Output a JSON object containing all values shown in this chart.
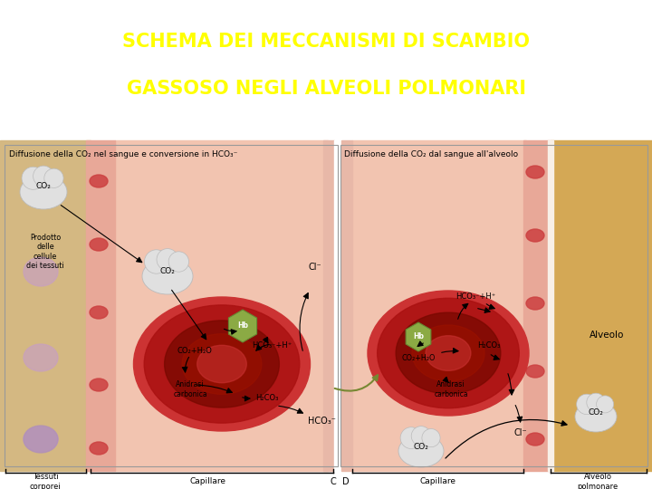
{
  "title_line1": "SCHEMA DEI MECCANISMI DI SCAMBIO",
  "title_line2": "GASSOSO NEGLI ALVEOLI POLMONARI",
  "title_color": "#FFFF00",
  "title_bg_color": "#1010BB",
  "title_fontsize": 15,
  "fig_bg_color": "#FFFFFF",
  "subtitle_left": "Diffusione della CO₂ nel sangue e conversione in HCO₃⁻",
  "subtitle_right": "Diffusione della CO₂ dal sangue all'alveolo",
  "label_tessuti": "Tessuti\ncorporei",
  "label_capillare_left": "Capillare",
  "label_C": "C",
  "label_D": "D",
  "label_capillare_right": "Capillare",
  "label_alveolo_polmonare": "Alveolo\npolmonare",
  "label_alveolo_right": "Alveolo",
  "label_prodotto": "Prodotto\ndelle\ncellule\ndei tessuti",
  "label_co2_left_top": "CO₂",
  "label_co2_cap_left": "CO₂",
  "label_cl_left": "Cl⁻",
  "label_co2h2o_left": "CO₂+H₂O",
  "label_hco3h_left": "HCO₃⁻+H⁺",
  "label_anidrasi_left": "Anidrasi\ncarbonica",
  "label_h2co3_left": "H₂CO₃",
  "label_hco3_out_left": "HCO₃⁻",
  "label_hco3h_right": "HCO₃⁻+H⁺",
  "label_h2co3_right": "H₂CO₃",
  "label_co2h2o_right": "CO₂+H₂O",
  "label_anidrasi_right": "Anidrasi\ncarbonica",
  "label_cl_right": "Cl⁻",
  "label_co2_bottom_right": "CO₂",
  "label_co2_alveolo": "CO₂",
  "capillary_color": "#F2C4B0",
  "tissue_color_left": "#D4B882",
  "tissue_color_right": "#D4A855",
  "wall_color": "#E8A898",
  "wall_color2": "#E8B8A8",
  "rbc_light": "#CC3333",
  "rbc_mid": "#AA1111",
  "rbc_dark": "#770800",
  "hb_color": "#8BAA44",
  "cloud_color": "#E0E0E0",
  "cloud_edge": "#BBBBBB",
  "tissue_cell_color": "#C8A0C0",
  "rbc_wall_color": "#CC4040"
}
